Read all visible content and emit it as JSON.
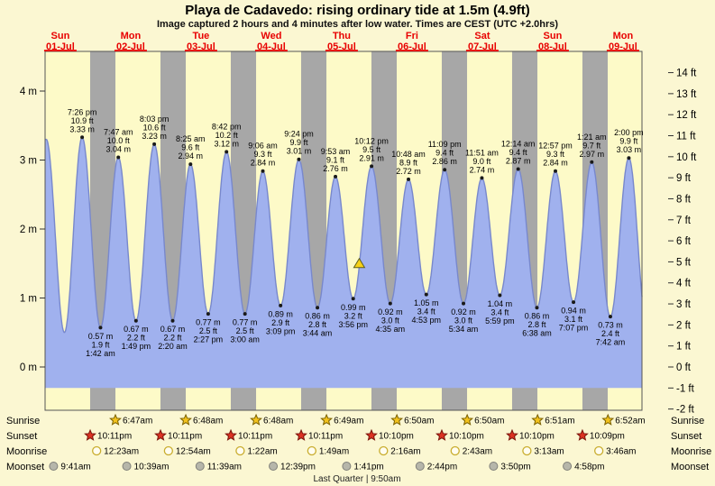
{
  "header": {
    "title": "Playa de Cadavedo: rising  ordinary tide at 1.5m (4.9ft)",
    "subtitle": "Image captured 2 hours and 4 minutes after low water. Times are CEST (UTC +2.0hrs)"
  },
  "colors": {
    "day_band": "#fdfac8",
    "night_band": "#a7a7a7",
    "curve_fill": "#a0b1ee",
    "curve_stroke": "#7888cc",
    "date_color": "#e80000",
    "marker_fill": "#f7d117",
    "marker_stroke": "#5f5f1e",
    "sunrise_star": "#f2c21c",
    "sunset_star": "#db3222",
    "moonrise_ring": "#c9ad2e",
    "moonset_fill": "#b6b6aa"
  },
  "chart_data": {
    "type": "area",
    "title": "Playa de Cadavedo: rising  ordinary tide at 1.5m (4.9ft)",
    "subtitle": "Image captured 2 hours and 4 minutes after low water. Times are CEST (UTC +2.0hrs)",
    "y_left": {
      "unit": "m",
      "ticks": [
        0,
        1,
        2,
        3,
        4
      ]
    },
    "y_right": {
      "unit": "ft",
      "ticks": [
        -2,
        -1,
        0,
        1,
        2,
        3,
        4,
        5,
        6,
        7,
        8,
        9,
        10,
        11,
        12,
        13,
        14
      ]
    },
    "days": [
      {
        "weekday": "Sun",
        "date": "01-Jul"
      },
      {
        "weekday": "Mon",
        "date": "02-Jul"
      },
      {
        "weekday": "Tue",
        "date": "03-Jul"
      },
      {
        "weekday": "Wed",
        "date": "04-Jul"
      },
      {
        "weekday": "Thu",
        "date": "05-Jul"
      },
      {
        "weekday": "Fri",
        "date": "06-Jul"
      },
      {
        "weekday": "Sat",
        "date": "07-Jul"
      },
      {
        "weekday": "Sun",
        "date": "08-Jul"
      },
      {
        "weekday": "Mon",
        "date": "09-Jul"
      }
    ],
    "extremes": [
      {
        "kind": "high",
        "day": 0,
        "time": "7:26 pm",
        "m": 3.33,
        "ft": 10.9
      },
      {
        "kind": "low",
        "day": 1,
        "time": "1:42 am",
        "m": 0.57,
        "ft": 1.9
      },
      {
        "kind": "high",
        "day": 1,
        "time": "7:47 am",
        "m": 3.04,
        "ft": 10.0
      },
      {
        "kind": "low",
        "day": 1,
        "time": "1:49 pm",
        "m": 0.67,
        "ft": 2.2
      },
      {
        "kind": "high",
        "day": 1,
        "time": "8:03 pm",
        "m": 3.23,
        "ft": 10.6
      },
      {
        "kind": "low",
        "day": 2,
        "time": "2:20 am",
        "m": 0.67,
        "ft": 2.2
      },
      {
        "kind": "high",
        "day": 2,
        "time": "8:25 am",
        "m": 2.94,
        "ft": 9.6
      },
      {
        "kind": "low",
        "day": 2,
        "time": "2:27 pm",
        "m": 0.77,
        "ft": 2.5
      },
      {
        "kind": "high",
        "day": 2,
        "time": "8:42 pm",
        "m": 3.12,
        "ft": 10.2
      },
      {
        "kind": "low",
        "day": 3,
        "time": "3:00 am",
        "m": 0.77,
        "ft": 2.5
      },
      {
        "kind": "high",
        "day": 3,
        "time": "9:06 am",
        "m": 2.84,
        "ft": 9.3
      },
      {
        "kind": "low",
        "day": 3,
        "time": "3:09 pm",
        "m": 0.89,
        "ft": 2.9
      },
      {
        "kind": "high",
        "day": 3,
        "time": "9:24 pm",
        "m": 3.01,
        "ft": 9.9
      },
      {
        "kind": "low",
        "day": 4,
        "time": "3:44 am",
        "m": 0.86,
        "ft": 2.8
      },
      {
        "kind": "high",
        "day": 4,
        "time": "9:53 am",
        "m": 2.76,
        "ft": 9.1
      },
      {
        "kind": "low",
        "day": 4,
        "time": "3:56 pm",
        "m": 0.99,
        "ft": 3.2
      },
      {
        "kind": "high",
        "day": 4,
        "time": "10:12 pm",
        "m": 2.91,
        "ft": 9.5
      },
      {
        "kind": "low",
        "day": 5,
        "time": "4:35 am",
        "m": 0.92,
        "ft": 3.0
      },
      {
        "kind": "high",
        "day": 5,
        "time": "10:48 am",
        "m": 2.72,
        "ft": 8.9
      },
      {
        "kind": "low",
        "day": 5,
        "time": "4:53 pm",
        "m": 1.05,
        "ft": 3.4
      },
      {
        "kind": "high",
        "day": 5,
        "time": "11:09 pm",
        "m": 2.86,
        "ft": 9.4
      },
      {
        "kind": "low",
        "day": 6,
        "time": "5:34 am",
        "m": 0.92,
        "ft": 3.0
      },
      {
        "kind": "high",
        "day": 6,
        "time": "11:51 am",
        "m": 2.74,
        "ft": 9.0
      },
      {
        "kind": "low",
        "day": 6,
        "time": "5:59 pm",
        "m": 1.04,
        "ft": 3.4
      },
      {
        "kind": "high",
        "day": 7,
        "time": "12:14 am",
        "m": 2.87,
        "ft": 9.4
      },
      {
        "kind": "low",
        "day": 7,
        "time": "6:38 am",
        "m": 0.86,
        "ft": 2.8
      },
      {
        "kind": "high",
        "day": 7,
        "time": "12:57 pm",
        "m": 2.84,
        "ft": 9.3
      },
      {
        "kind": "low",
        "day": 7,
        "time": "7:07 pm",
        "m": 0.94,
        "ft": 3.1
      },
      {
        "kind": "high",
        "day": 8,
        "time": "1:21 am",
        "m": 2.97,
        "ft": 9.7
      },
      {
        "kind": "low",
        "day": 8,
        "time": "7:42 am",
        "m": 0.73,
        "ft": 2.4
      },
      {
        "kind": "high",
        "day": 8,
        "time": "2:00 pm",
        "m": 3.03,
        "ft": 9.9
      }
    ],
    "current_marker": {
      "day": 4,
      "time": "6:00 pm",
      "height_m": 1.5,
      "height_ft": 4.9
    }
  },
  "astro": {
    "rows": [
      {
        "label": "Sunrise",
        "icon": "sunrise-star-icon",
        "entries": [
          {
            "day": 1,
            "time": "6:47am"
          },
          {
            "day": 2,
            "time": "6:48am"
          },
          {
            "day": 3,
            "time": "6:48am"
          },
          {
            "day": 4,
            "time": "6:49am"
          },
          {
            "day": 5,
            "time": "6:50am"
          },
          {
            "day": 6,
            "time": "6:50am"
          },
          {
            "day": 7,
            "time": "6:51am"
          },
          {
            "day": 8,
            "time": "6:52am"
          }
        ]
      },
      {
        "label": "Sunset",
        "icon": "sunset-star-icon",
        "entries": [
          {
            "day": 0,
            "time": "10:11pm"
          },
          {
            "day": 1,
            "time": "10:11pm"
          },
          {
            "day": 2,
            "time": "10:11pm"
          },
          {
            "day": 3,
            "time": "10:11pm"
          },
          {
            "day": 4,
            "time": "10:10pm"
          },
          {
            "day": 5,
            "time": "10:10pm"
          },
          {
            "day": 6,
            "time": "10:10pm"
          },
          {
            "day": 7,
            "time": "10:09pm"
          }
        ]
      },
      {
        "label": "Moonrise",
        "icon": "moonrise-icon",
        "entries": [
          {
            "day": 1,
            "time": "12:23am"
          },
          {
            "day": 2,
            "time": "12:54am"
          },
          {
            "day": 3,
            "time": "1:22am"
          },
          {
            "day": 4,
            "time": "1:49am"
          },
          {
            "day": 5,
            "time": "2:16am"
          },
          {
            "day": 6,
            "time": "2:43am"
          },
          {
            "day": 7,
            "time": "3:13am"
          },
          {
            "day": 8,
            "time": "3:46am"
          }
        ]
      },
      {
        "label": "Moonset",
        "icon": "moonset-icon",
        "entries": [
          {
            "day": 0,
            "time": "9:41am"
          },
          {
            "day": 1,
            "time": "10:39am"
          },
          {
            "day": 2,
            "time": "11:39am"
          },
          {
            "day": 3,
            "time": "12:39pm"
          },
          {
            "day": 4,
            "time": "1:41pm"
          },
          {
            "day": 5,
            "time": "2:44pm"
          },
          {
            "day": 6,
            "time": "3:50pm"
          },
          {
            "day": 7,
            "time": "4:58pm"
          }
        ]
      }
    ],
    "footer": "Last Quarter | 9:50am"
  }
}
